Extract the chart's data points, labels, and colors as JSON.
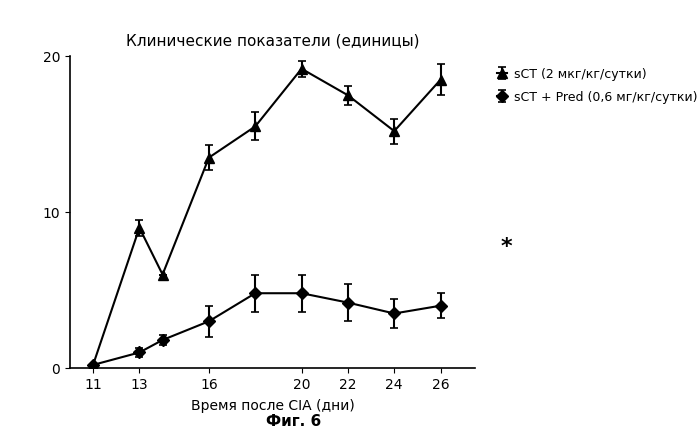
{
  "title": "Клинические показатели (единицы)",
  "xlabel": "Время после CIA (дни)",
  "caption": "Фиг. 6",
  "x_ticks": [
    11,
    13,
    16,
    20,
    22,
    24,
    26
  ],
  "ylim": [
    0,
    20
  ],
  "yticks": [
    0,
    10,
    20
  ],
  "sct_x": [
    11,
    13,
    14,
    16,
    18,
    20,
    22,
    24,
    26
  ],
  "sct_y": [
    0.2,
    9.0,
    6.0,
    13.5,
    15.5,
    19.2,
    17.5,
    15.2,
    18.5
  ],
  "sct_yerr": [
    0.0,
    0.5,
    0.0,
    0.8,
    0.9,
    0.5,
    0.6,
    0.8,
    1.0
  ],
  "combo_x": [
    11,
    13,
    14,
    16,
    18,
    20,
    22,
    24,
    26
  ],
  "combo_y": [
    0.2,
    1.0,
    1.8,
    3.0,
    4.8,
    4.8,
    4.2,
    3.5,
    4.0
  ],
  "combo_yerr": [
    0.0,
    0.3,
    0.3,
    1.0,
    1.2,
    1.2,
    1.2,
    0.9,
    0.8
  ],
  "legend_sct": "sCT (2 мкг/кг/сутки)",
  "legend_combo": "sCT + Pred (0,6 мг/кг/сутки)",
  "star_text": "*",
  "bg_color": "#ffffff"
}
